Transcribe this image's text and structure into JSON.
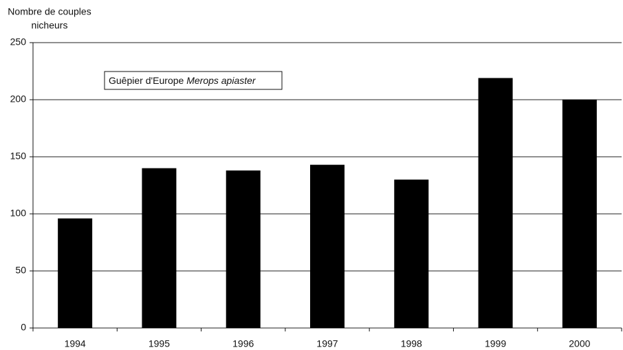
{
  "chart_data": {
    "type": "bar",
    "y_label": [
      "Nombre de couples",
      "nicheurs"
    ],
    "annotation": {
      "text": "Guêpier d'Europe",
      "italic": "Merops apiaster"
    },
    "categories": [
      "1994",
      "1995",
      "1996",
      "1997",
      "1998",
      "1999",
      "2000"
    ],
    "values": [
      96,
      140,
      138,
      143,
      130,
      219,
      200
    ],
    "color": "#000000",
    "ylim": [
      0,
      250
    ],
    "yticks": [
      0,
      50,
      100,
      150,
      200,
      250
    ],
    "grid": true
  }
}
